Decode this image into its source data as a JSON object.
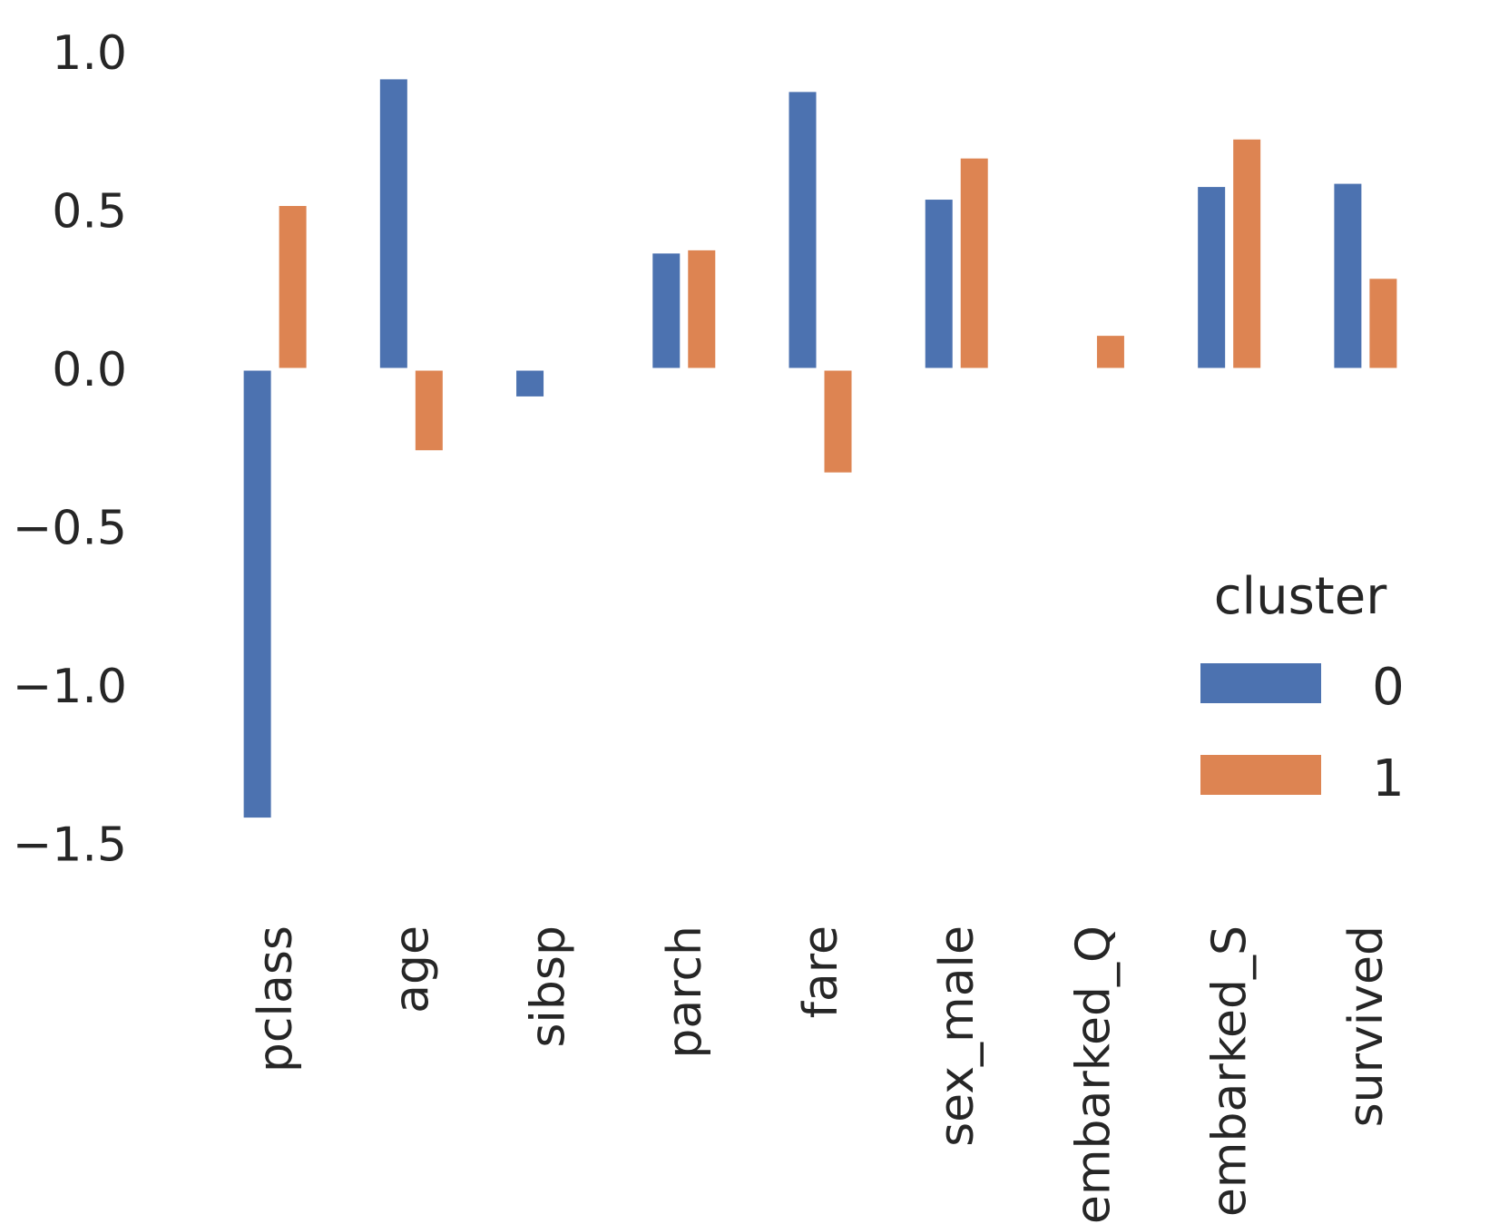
{
  "chart_data": {
    "type": "bar",
    "categories": [
      "pclass",
      "age",
      "sibsp",
      "parch",
      "fare",
      "sex_male",
      "embarked_Q",
      "embarked_S",
      "survived"
    ],
    "series": [
      {
        "name": "0",
        "color": "#4c72b0",
        "values": [
          -1.42,
          0.92,
          -0.09,
          0.37,
          0.88,
          0.54,
          0.0,
          0.58,
          0.59
        ]
      },
      {
        "name": "1",
        "color": "#dd8452",
        "values": [
          0.52,
          -0.26,
          0.0,
          0.38,
          -0.33,
          0.67,
          0.11,
          0.73,
          0.29
        ]
      }
    ],
    "yticks": [
      "1.0",
      "0.5",
      "0.0",
      "−0.5",
      "−1.0",
      "−1.5"
    ],
    "ytick_values": [
      1.0,
      0.5,
      0.0,
      -0.5,
      -1.0,
      -1.5
    ],
    "ylim": [
      -1.55,
      1.07
    ],
    "grid": false,
    "legend": {
      "title": "cluster",
      "placement": "right"
    }
  }
}
